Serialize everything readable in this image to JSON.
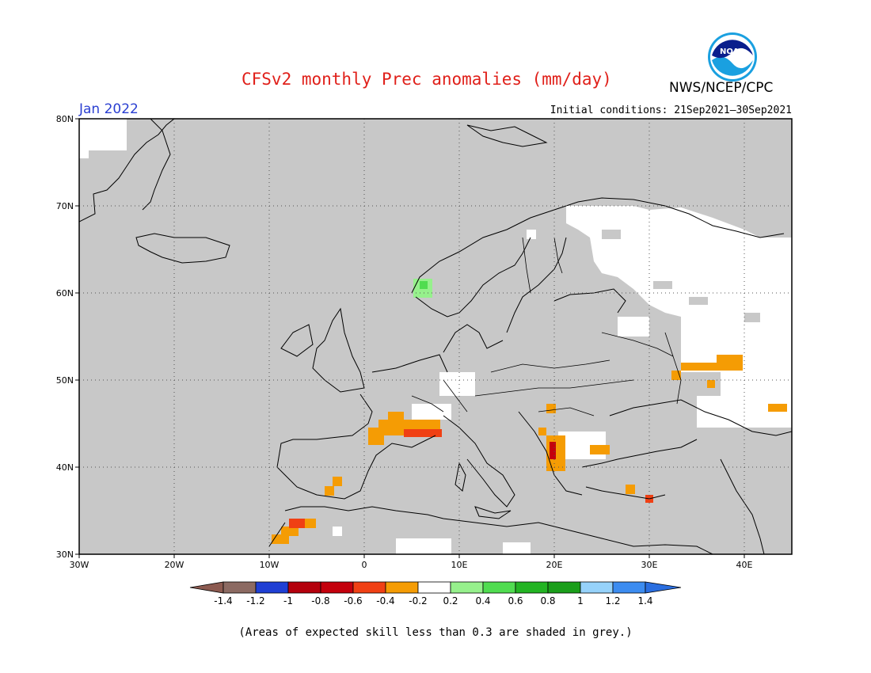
{
  "header": {
    "title": "CFSv2 monthly Prec anomalies (mm/day)",
    "month": "Jan 2022",
    "initial_conditions": "Initial conditions: 21Sep2021–30Sep2021",
    "agency": "NWS/NCEP/CPC",
    "logo_text": "NOAA"
  },
  "axes": {
    "x_ticks": [
      "30W",
      "20W",
      "10W",
      "0",
      "10E",
      "20E",
      "30E",
      "40E"
    ],
    "y_ticks": [
      "30N",
      "40N",
      "50N",
      "60N",
      "70N",
      "80N"
    ],
    "lon_range": [
      -30,
      45
    ],
    "lat_range": [
      30,
      80
    ],
    "grid": "dotted"
  },
  "colorbar": {
    "labels": [
      "-1.4",
      "-1.2",
      "-1",
      "-0.8",
      "-0.6",
      "-0.4",
      "-0.2",
      "0.2",
      "0.4",
      "0.6",
      "0.8",
      "1",
      "1.2",
      "1.4"
    ],
    "colors": [
      "#8c5a50",
      "#8c6a62",
      "#1f3fd4",
      "#b4000c",
      "#c4000c",
      "#f04014",
      "#f59c04",
      "#ffffff",
      "#96f08c",
      "#50dc50",
      "#23b423",
      "#1a9e1a",
      "#96d2fa",
      "#3c8cf0",
      "#2a6ee0"
    ]
  },
  "footer": "(Areas of expected skill less than 0.3 are shaded in grey.)",
  "colors": {
    "grey": "#c8c8c8",
    "title": "#e0201a",
    "month": "#2a3fd1"
  }
}
